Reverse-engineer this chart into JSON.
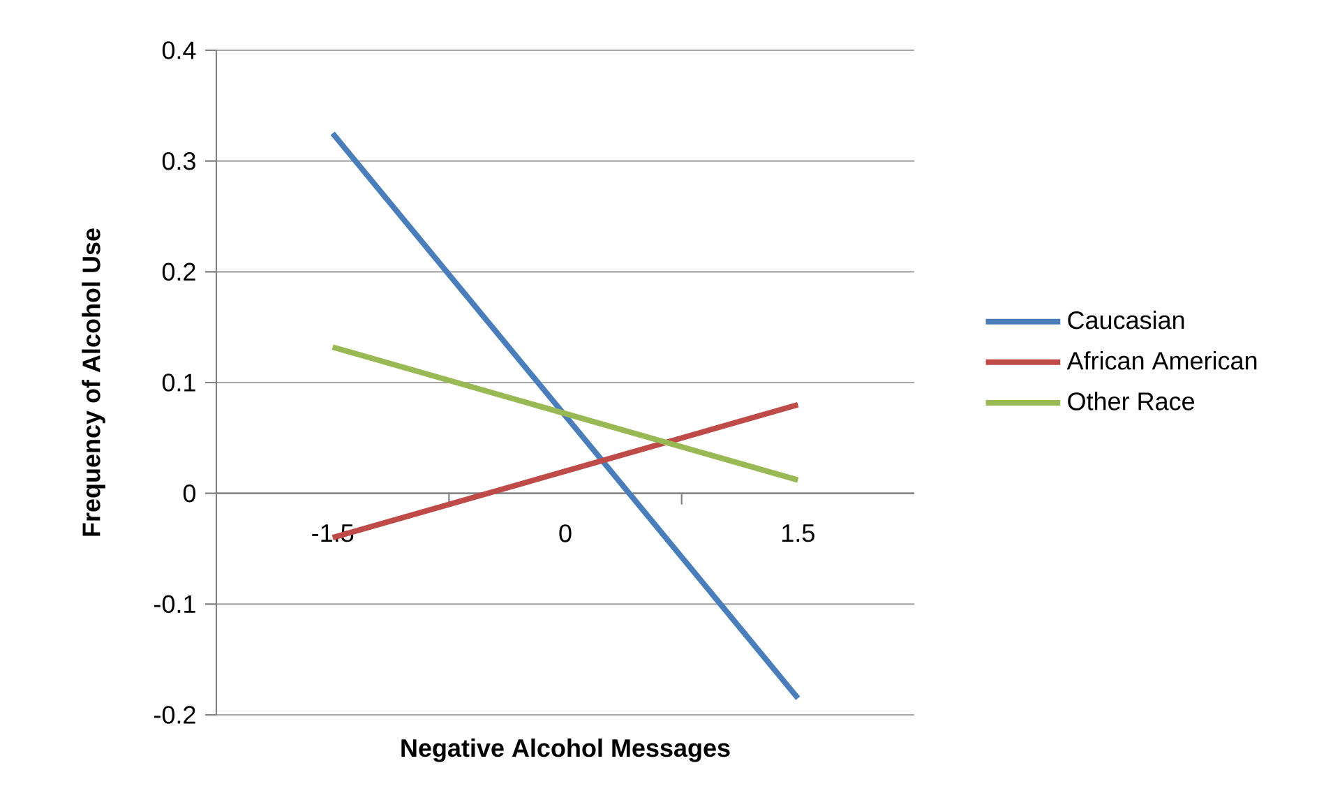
{
  "chart_data": {
    "type": "line",
    "xlabel": "Negative Alcohol Messages",
    "ylabel": "Frequency of Alcohol Use",
    "categories": [
      "-1.5",
      "0",
      "1.5"
    ],
    "series": [
      {
        "name": "Caucasian",
        "color": "#4a7ebb",
        "values": [
          0.325,
          0.07,
          -0.185
        ]
      },
      {
        "name": "African American",
        "color": "#be4b48",
        "values": [
          -0.04,
          0.02,
          0.08
        ]
      },
      {
        "name": "Other Race",
        "color": "#98b954",
        "values": [
          0.132,
          0.072,
          0.012
        ]
      }
    ],
    "ylim": [
      -0.2,
      0.4
    ],
    "yticks": [
      -0.2,
      -0.1,
      0,
      0.1,
      0.2,
      0.3,
      0.4
    ],
    "grid": "y",
    "legend": "right",
    "marker": "none",
    "line_style": "solid"
  }
}
